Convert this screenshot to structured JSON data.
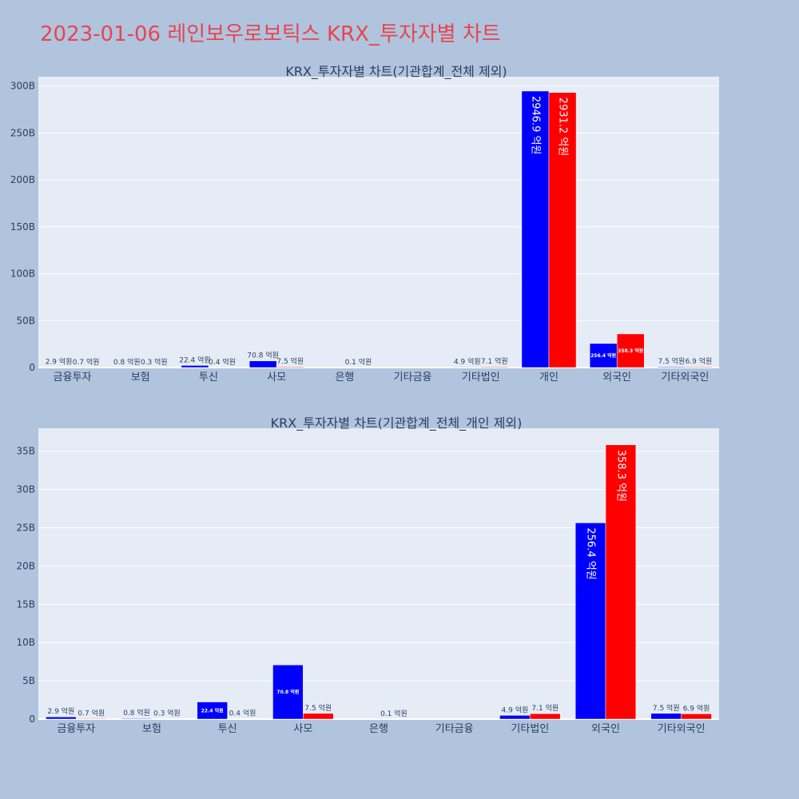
{
  "page": {
    "title": "2023-01-06 레인보우로보틱스 KRX_투자자별 차트"
  },
  "chart_data": [
    {
      "type": "bar",
      "title": "KRX_투자자별 차트(기관합계_전체 제외)",
      "categories": [
        "금융투자",
        "보험",
        "투신",
        "사모",
        "은행",
        "기타금융",
        "기타법인",
        "개인",
        "외국인",
        "기타외국인"
      ],
      "series": [
        {
          "color": "#0000ff",
          "values": [
            0.29,
            0.08,
            2.24,
            7.08,
            0,
            0,
            0.49,
            294.69,
            25.64,
            0.75
          ],
          "labels": [
            "2.9 억원",
            "0.8 억원",
            "22.4 억원",
            "70.8 억원",
            "",
            "",
            "4.9 억원",
            "2946.9 억원",
            "256.4 억원",
            "7.5 억원"
          ]
        },
        {
          "color": "#ff0000",
          "values": [
            0.07,
            0.03,
            0.04,
            0.75,
            0.01,
            0,
            0.71,
            293.12,
            35.83,
            0.69
          ],
          "labels": [
            "0.7 억원",
            "0.3 억원",
            "0.4 억원",
            "7.5 억원",
            "0.1 억원",
            "",
            "7.1 억원",
            "2931.2 억원",
            "358.3 억원",
            "6.9 억원"
          ]
        }
      ],
      "ylim": [
        0,
        310
      ],
      "yticks": [
        0,
        50,
        100,
        150,
        200,
        250,
        300
      ],
      "ytick_labels": [
        "0",
        "50B",
        "100B",
        "150B",
        "200B",
        "250B",
        "300B"
      ],
      "grid": true,
      "legend": "none"
    },
    {
      "type": "bar",
      "title": "KRX_투자자별 차트(기관합계_전체_개인 제외)",
      "categories": [
        "금융투자",
        "보험",
        "투신",
        "사모",
        "은행",
        "기타금융",
        "기타법인",
        "외국인",
        "기타외국인"
      ],
      "series": [
        {
          "color": "#0000ff",
          "values": [
            0.29,
            0.08,
            2.24,
            7.08,
            0,
            0,
            0.49,
            25.64,
            0.75
          ],
          "labels": [
            "2.9 억원",
            "0.8 억원",
            "22.4 억원",
            "70.8 억원",
            "",
            "",
            "4.9 억원",
            "256.4 억원",
            "7.5 억원"
          ]
        },
        {
          "color": "#ff0000",
          "values": [
            0.07,
            0.03,
            0.04,
            0.75,
            0.01,
            0,
            0.71,
            35.83,
            0.69
          ],
          "labels": [
            "0.7 억원",
            "0.3 억원",
            "0.4 억원",
            "7.5 억원",
            "0.1 억원",
            "",
            "7.1 억원",
            "358.3 억원",
            "6.9 억원"
          ]
        }
      ],
      "ylim": [
        0,
        38
      ],
      "yticks": [
        0,
        5,
        10,
        15,
        20,
        25,
        30,
        35
      ],
      "ytick_labels": [
        "0",
        "5B",
        "10B",
        "15B",
        "20B",
        "25B",
        "30B",
        "35B"
      ],
      "grid": true,
      "legend": "none"
    }
  ]
}
